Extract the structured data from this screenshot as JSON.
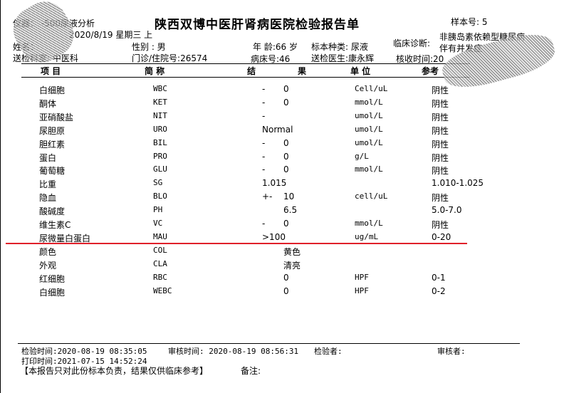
{
  "header": {
    "instrument": "仪器：         -500尿液分析",
    "date": "2020/8/19 星期三 上",
    "title": "陕西双博中医肝肾病医院检验报告单",
    "sample_no": "样本号: 5",
    "name_label": "姓名：",
    "gender": "性别 : 男",
    "age": "年 龄:66 岁",
    "specimen": "标本种类: 尿液",
    "diagnosis_label": "临床诊断:",
    "diagnosis_line1": "非胰岛素依赖型糖尿病",
    "diagnosis_line2": "伴有并发症",
    "dept": "送检科室: 中医科",
    "patient_no": "门诊/住院号:26574",
    "bed": "病床号:46",
    "doctor": "送检医生:康永辉",
    "received": "核收时间:20"
  },
  "columns": {
    "item": "项  目",
    "abbr": "简  称",
    "result1": "结",
    "result2": "果",
    "unit": "单  位",
    "ref": "参考"
  },
  "rows": [
    {
      "name": "白细胞",
      "abbr": "WBC",
      "flag": "-",
      "value": "0",
      "unit": "Cell/uL",
      "ref": "阴性"
    },
    {
      "name": "酮体",
      "abbr": "KET",
      "flag": "-",
      "value": "0",
      "unit": "mmol/L",
      "ref": "阴性"
    },
    {
      "name": "亚硝酸盐",
      "abbr": "NIT",
      "flag": "-",
      "value": "",
      "unit": "umol/L",
      "ref": "阴性"
    },
    {
      "name": "尿胆原",
      "abbr": "URO",
      "flag": "",
      "value": "Normal",
      "unit": "umol/L",
      "ref": "阴性"
    },
    {
      "name": "胆红素",
      "abbr": "BIL",
      "flag": "-",
      "value": "0",
      "unit": "umol/L",
      "ref": "阴性"
    },
    {
      "name": "蛋白",
      "abbr": "PRO",
      "flag": "-",
      "value": "0",
      "unit": "g/L",
      "ref": "阴性"
    },
    {
      "name": "葡萄糖",
      "abbr": "GLU",
      "flag": "-",
      "value": "0",
      "unit": "mmol/L",
      "ref": "阴性"
    },
    {
      "name": "比重",
      "abbr": "SG",
      "flag": "",
      "value": "1.015",
      "unit": "",
      "ref": "1.010-1.025"
    },
    {
      "name": "隐血",
      "abbr": "BLO",
      "flag": "+-",
      "value": "10",
      "unit": "cell/uL",
      "ref": "阴性"
    },
    {
      "name": "酸碱度",
      "abbr": "PH",
      "flag": "",
      "value": "6.5",
      "unit": "",
      "ref": "5.0-7.0"
    },
    {
      "name": "维生素C",
      "abbr": "VC",
      "flag": "-",
      "value": "0",
      "unit": "mmol/L",
      "ref": "阴性"
    },
    {
      "name": "尿微量白蛋白",
      "abbr": "MAU",
      "flag": "",
      "value": ">100",
      "unit": "ug/mL",
      "ref": "0-20"
    },
    {
      "name": "颜色",
      "abbr": "COL",
      "flag": "",
      "value": "黄色",
      "unit": "",
      "ref": ""
    },
    {
      "name": "外观",
      "abbr": "CLA",
      "flag": "",
      "value": "清亮",
      "unit": "",
      "ref": ""
    },
    {
      "name": "红细胞",
      "abbr": "RBC",
      "flag": "",
      "value": "0",
      "unit": "HPF",
      "ref": "0-1"
    },
    {
      "name": "白细胞",
      "abbr": "WEBC",
      "flag": "",
      "value": "0",
      "unit": "HPF",
      "ref": "0-2"
    }
  ],
  "footer": {
    "test_time": "检验时间:2020-08-19 08:35:05",
    "review_time": "审核时间: 2020-08-19 08:56:31",
    "tester": "检验者:",
    "reviewer": "审核者:",
    "print_time": "打印时间:2021-07-15 14:52:24",
    "disclaimer": "【本报告只对此份标本负责，结果仅供临床参考】",
    "remark": "备注:"
  },
  "colors": {
    "highlight_line": "#e0202a"
  }
}
